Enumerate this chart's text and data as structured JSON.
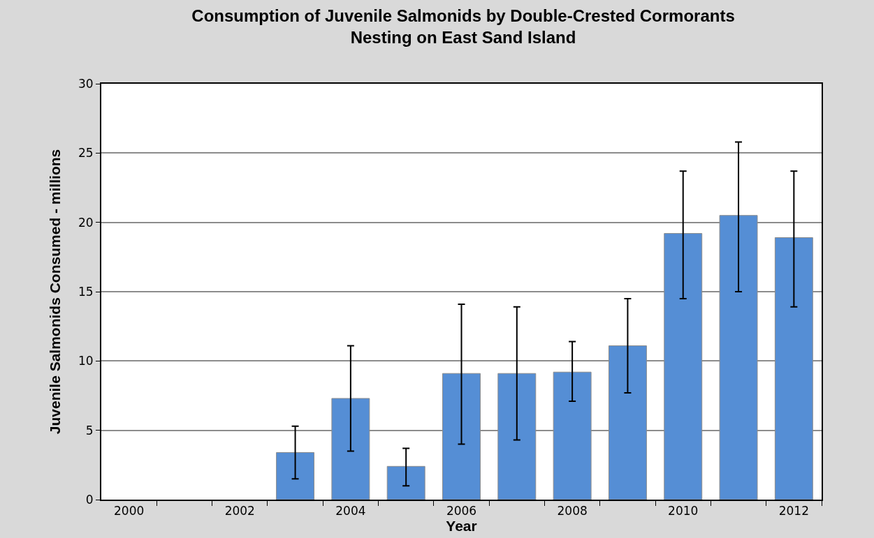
{
  "chart_data": {
    "type": "bar",
    "title": "Consumption of Juvenile Salmonids by Double-Crested Cormorants\nNesting on East Sand Island",
    "xlabel": "Year",
    "ylabel": "Juvenile Salmonids Consumed - millions",
    "categories": [
      "2000",
      null,
      "2002",
      null,
      "2004",
      null,
      "2006",
      null,
      "2008",
      null,
      "2010",
      null,
      "2012"
    ],
    "values": [
      null,
      null,
      null,
      3.4,
      7.3,
      2.4,
      9.1,
      9.1,
      9.2,
      11.1,
      19.2,
      20.5,
      18.9
    ],
    "errors": [
      null,
      null,
      null,
      [
        1.5,
        5.3
      ],
      [
        3.5,
        11.1
      ],
      [
        1.0,
        3.7
      ],
      [
        4.0,
        14.1
      ],
      [
        4.3,
        13.9
      ],
      [
        7.1,
        11.4
      ],
      [
        7.7,
        14.5
      ],
      [
        14.5,
        23.7
      ],
      [
        15.0,
        25.8
      ],
      [
        13.9,
        23.7
      ]
    ],
    "color": "#558ed5",
    "ylim": [
      0,
      30
    ],
    "yticks": [
      0,
      5,
      10,
      15,
      20,
      25,
      30
    ],
    "grid": "y",
    "legend": false
  }
}
